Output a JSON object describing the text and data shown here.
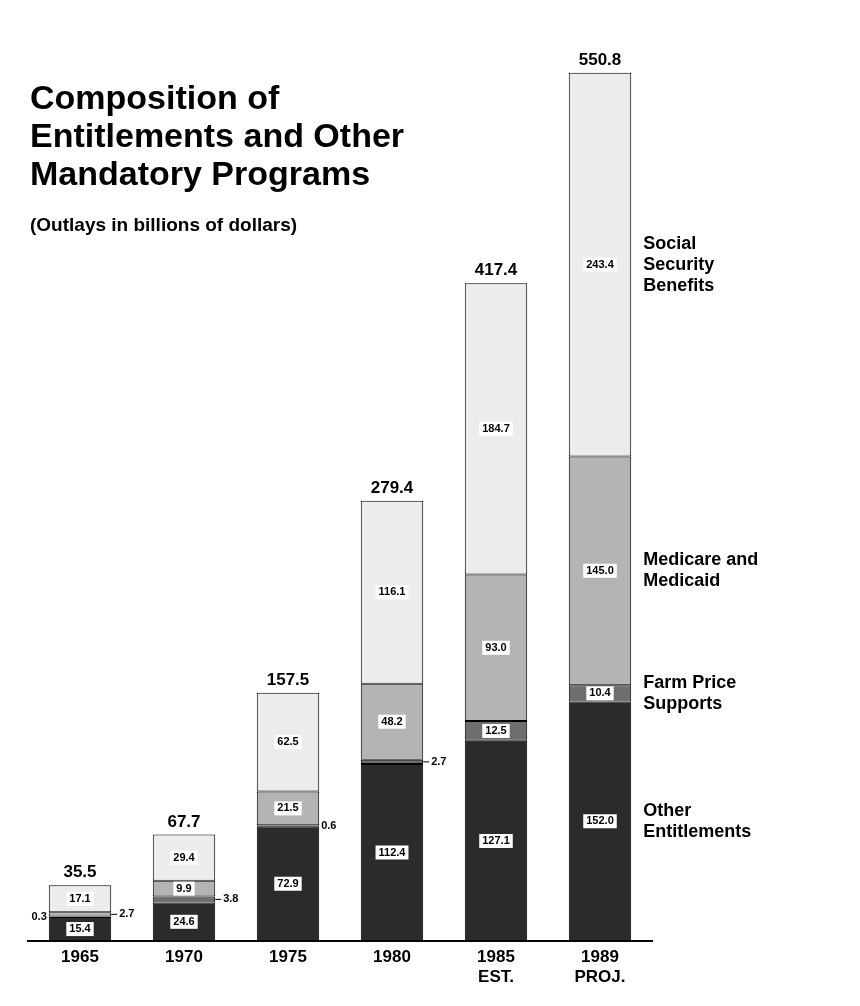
{
  "chart_data": {
    "type": "bar",
    "title": "Composition of\nEntitlements and Other\nMandatory Programs",
    "subtitle": "(Outlays in billions of dollars)",
    "categories": [
      "1965",
      "1970",
      "1975",
      "1980",
      "1985\nEST.",
      "1989\nPROJ."
    ],
    "stacked": true,
    "series": [
      {
        "name": "Other\nEntitlements",
        "color": "#2b2b2b",
        "values": [
          15.4,
          24.6,
          72.9,
          112.4,
          127.1,
          152.0
        ],
        "value_labels": [
          "15.4",
          "24.6",
          "72.9",
          "112.4",
          "127.1",
          "152.0"
        ]
      },
      {
        "name": "Farm Price\nSupports",
        "color": "#6e6e6e",
        "values": [
          0.3,
          3.8,
          0.6,
          2.7,
          12.5,
          10.4
        ],
        "value_labels": [
          "0.3",
          "3.8",
          "0.6",
          "2.7",
          "12.5",
          "10.4"
        ]
      },
      {
        "name": "Medicare and\nMedicaid",
        "color": "#b4b4b4",
        "values": [
          2.7,
          9.9,
          21.5,
          48.2,
          93.0,
          145.0
        ],
        "value_labels": [
          "2.7",
          "9.9",
          "21.5",
          "48.2",
          "93.0",
          "145.0"
        ]
      },
      {
        "name": "Social\nSecurity\nBenefits",
        "color": "#ececec",
        "values": [
          17.1,
          29.4,
          62.5,
          116.1,
          184.7,
          243.4
        ],
        "value_labels": [
          "17.1",
          "29.4",
          "62.5",
          "116.1",
          "184.7",
          "243.4"
        ]
      }
    ],
    "totals": [
      "35.5",
      "67.7",
      "157.5",
      "279.4",
      "417.4",
      "550.8"
    ]
  }
}
